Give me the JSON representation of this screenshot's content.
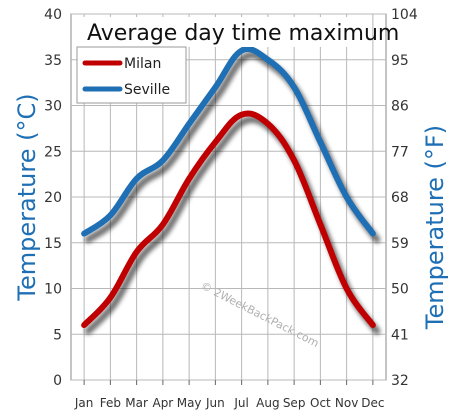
{
  "chart_data": {
    "type": "line",
    "title": "Average day time maximum",
    "ylabel_left": "Temperature (°C)",
    "ylabel_right": "Temperature (°F)",
    "categories": [
      "Jan",
      "Feb",
      "Mar",
      "Apr",
      "May",
      "Jun",
      "Jul",
      "Aug",
      "Sep",
      "Oct",
      "Nov",
      "Dec"
    ],
    "ylim": [
      0,
      40
    ],
    "yticks_left": [
      "0",
      "5",
      "10",
      "15",
      "20",
      "25",
      "30",
      "35",
      "40"
    ],
    "yticks_right": [
      "32",
      "41",
      "50",
      "59",
      "68",
      "77",
      "86",
      "95",
      "104"
    ],
    "series": [
      {
        "name": "Milan",
        "color": "#c00000",
        "values": [
          6,
          9,
          14,
          17,
          22,
          26,
          29,
          28,
          24,
          17,
          10,
          6
        ]
      },
      {
        "name": "Seville",
        "color": "#1f6fb5",
        "values": [
          16,
          18,
          22,
          24,
          28,
          32,
          36,
          35,
          32,
          26,
          20,
          16
        ]
      }
    ],
    "grid": true,
    "legend": "top-left",
    "watermark": "© 2WeekBackPack.com"
  }
}
